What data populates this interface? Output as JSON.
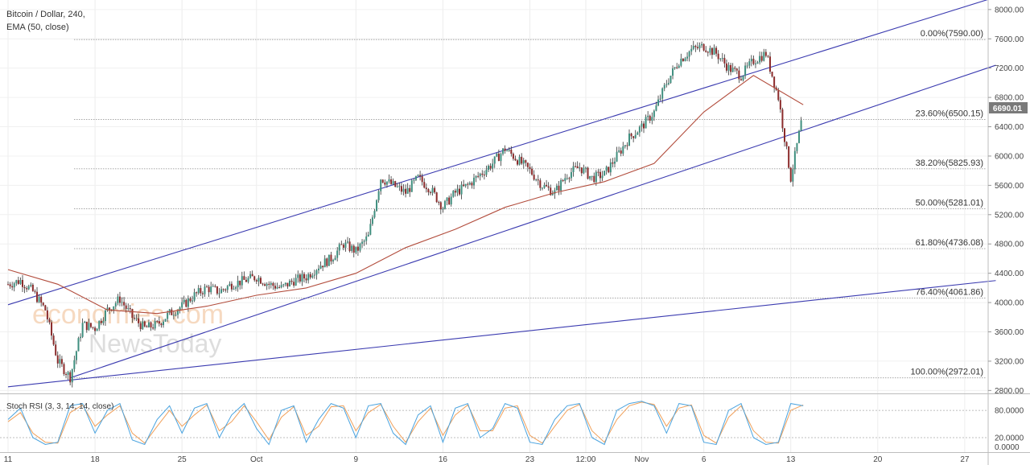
{
  "header": {
    "symbol": "Bitcoin / Dollar, 240,",
    "indicator": "EMA (50, close)"
  },
  "watermark": {
    "line1": "economies.com",
    "line2": "NewsToday"
  },
  "colors": {
    "up": "#3f8f7f",
    "down": "#8b2b2b",
    "ema": "#b24c3c",
    "channel": "#3b3bb0",
    "fib": "#9a9a9a",
    "stoch_k": "#4aa3df",
    "stoch_d": "#f0a05a"
  },
  "chart_data": {
    "type": "candlestick",
    "price_axis": {
      "ticks": [
        "8000.00",
        "7600.00",
        "7200.00",
        "6800.00",
        "6400.00",
        "6000.00",
        "5600.00",
        "5200.00",
        "4800.00",
        "4400.00",
        "4000.00",
        "3600.00",
        "3200.00",
        "2800.00"
      ],
      "ylim": [
        2760,
        8130
      ]
    },
    "last_price": "6690.01",
    "time_axis": {
      "ticks": [
        "11",
        "18",
        "25",
        "Oct",
        "9",
        "16",
        "23",
        "12:00",
        "Nov",
        "6",
        "13",
        "20",
        "27"
      ],
      "tick_days": [
        0,
        7,
        14,
        20,
        28,
        35,
        42,
        46.5,
        51,
        56,
        63,
        70,
        77
      ]
    },
    "fib_levels": [
      {
        "label": "0.00%(7590.00)",
        "value": 7590.0
      },
      {
        "label": "23.60%(6500.15)",
        "value": 6500.15
      },
      {
        "label": "38.20%(5825.93)",
        "value": 5825.93
      },
      {
        "label": "50.00%(5281.01)",
        "value": 5281.01
      },
      {
        "label": "61.80%(4736.08)",
        "value": 4736.08
      },
      {
        "label": "76.40%(4061.86)",
        "value": 4061.86
      },
      {
        "label": "100.00%(2972.01)",
        "value": 2972.01
      }
    ],
    "close_series": {
      "days": [
        0,
        1,
        2,
        3,
        4,
        5,
        6,
        7,
        8,
        9,
        10,
        11,
        12,
        13,
        14,
        15,
        16,
        17,
        18,
        19,
        20,
        21,
        22,
        23,
        24,
        25,
        26,
        27,
        28,
        29,
        30,
        31,
        32,
        33,
        34,
        35,
        36,
        37,
        38,
        39,
        40,
        41,
        42,
        43,
        44,
        45,
        46,
        47,
        48,
        49,
        50,
        51,
        52,
        53,
        54,
        55,
        56,
        57,
        58,
        59,
        60,
        61,
        62,
        63,
        64
      ],
      "close": [
        4250,
        4300,
        4150,
        3900,
        3200,
        2980,
        3700,
        3650,
        3900,
        4050,
        3800,
        3650,
        3700,
        3850,
        3950,
        4100,
        4200,
        4150,
        4250,
        4300,
        4350,
        4250,
        4200,
        4300,
        4350,
        4500,
        4600,
        4800,
        4700,
        4900,
        5700,
        5600,
        5500,
        5700,
        5550,
        5300,
        5500,
        5600,
        5750,
        5900,
        6100,
        5950,
        5800,
        5600,
        5500,
        5750,
        5850,
        5700,
        5750,
        6000,
        6250,
        6400,
        6600,
        7000,
        7300,
        7450,
        7500,
        7400,
        7200,
        7100,
        7300,
        7400,
        6800,
        5700,
        6600
      ]
    },
    "ema_line": {
      "label": "EMA (50, close)",
      "days": [
        0,
        4,
        8,
        12,
        16,
        20,
        24,
        28,
        32,
        36,
        40,
        44,
        48,
        52,
        56,
        60,
        64
      ],
      "values": [
        4450,
        4250,
        3900,
        3850,
        3950,
        4100,
        4200,
        4400,
        4750,
        5000,
        5300,
        5500,
        5650,
        5900,
        6600,
        7100,
        6700
      ]
    },
    "channel_lines": [
      {
        "days": [
          0,
          79.5
        ],
        "values": [
          3970,
          8170
        ]
      },
      {
        "days": [
          5,
          79.5
        ],
        "values": [
          2972,
          7240
        ]
      },
      {
        "days": [
          0,
          79.5
        ],
        "values": [
          2850,
          4300
        ]
      }
    ],
    "stoch_rsi": {
      "label": "Stoch RSI (3, 3, 14, 14, close)",
      "ticks": [
        "80.0000",
        "20.0000",
        "0.0000"
      ],
      "ylim": [
        -10,
        112
      ],
      "days": [
        0,
        1,
        2,
        3,
        4,
        5,
        6,
        7,
        8,
        9,
        10,
        11,
        12,
        13,
        14,
        15,
        16,
        17,
        18,
        19,
        20,
        21,
        22,
        23,
        24,
        25,
        26,
        27,
        28,
        29,
        30,
        31,
        32,
        33,
        34,
        35,
        36,
        37,
        38,
        39,
        40,
        41,
        42,
        43,
        44,
        45,
        46,
        47,
        48,
        49,
        50,
        51,
        52,
        53,
        54,
        55,
        56,
        57,
        58,
        59,
        60,
        61,
        62,
        63,
        64
      ],
      "k": [
        60,
        85,
        20,
        5,
        10,
        90,
        95,
        30,
        80,
        95,
        15,
        5,
        60,
        90,
        30,
        85,
        95,
        20,
        70,
        95,
        40,
        5,
        80,
        90,
        10,
        60,
        95,
        85,
        20,
        90,
        95,
        30,
        5,
        70,
        90,
        10,
        85,
        95,
        20,
        40,
        95,
        85,
        10,
        5,
        60,
        90,
        95,
        20,
        5,
        80,
        95,
        100,
        90,
        30,
        95,
        90,
        10,
        5,
        80,
        95,
        20,
        5,
        10,
        95,
        90
      ],
      "d": [
        55,
        75,
        30,
        10,
        8,
        75,
        92,
        45,
        70,
        90,
        30,
        8,
        45,
        80,
        45,
        70,
        92,
        35,
        55,
        90,
        55,
        15,
        65,
        88,
        25,
        45,
        88,
        90,
        35,
        75,
        93,
        45,
        10,
        55,
        85,
        25,
        70,
        92,
        35,
        35,
        85,
        90,
        25,
        8,
        45,
        80,
        93,
        35,
        10,
        60,
        90,
        98,
        93,
        45,
        85,
        92,
        25,
        8,
        65,
        90,
        35,
        10,
        8,
        80,
        92
      ]
    }
  }
}
